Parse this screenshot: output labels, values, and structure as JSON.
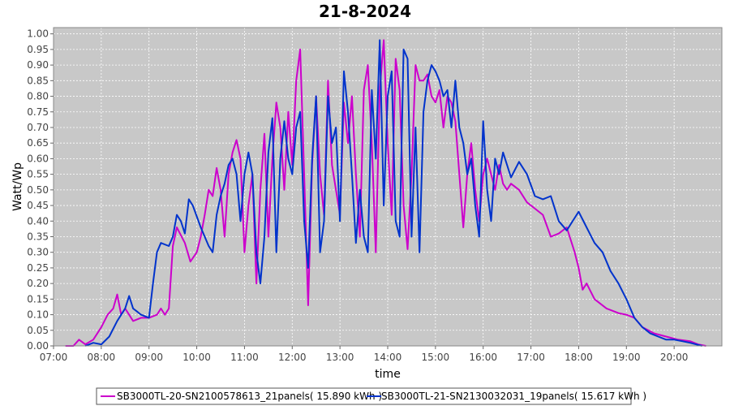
{
  "chart_data": {
    "type": "line",
    "title": "21-8-2024",
    "xlabel": "time",
    "ylabel": "Watt/Wp",
    "xlim": [
      "07:00",
      "21:00"
    ],
    "ylim": [
      0,
      1.02
    ],
    "x_ticks": [
      "07:00",
      "08:00",
      "09:00",
      "10:00",
      "11:00",
      "12:00",
      "13:00",
      "14:00",
      "15:00",
      "16:00",
      "17:00",
      "18:00",
      "19:00",
      "20:00"
    ],
    "y_ticks": [
      "0.00",
      "0.05",
      "0.10",
      "0.15",
      "0.20",
      "0.25",
      "0.30",
      "0.35",
      "0.40",
      "0.45",
      "0.50",
      "0.55",
      "0.60",
      "0.65",
      "0.70",
      "0.75",
      "0.80",
      "0.85",
      "0.90",
      "0.95",
      "1.00"
    ],
    "grid": true,
    "legend_position": "bottom",
    "plot_background": "#c8c8c8",
    "series": [
      {
        "name": "SB3000TL-20-SN2100578613_21panels( 15.890 kWh )",
        "color": "#cc00cc",
        "points": [
          [
            "07:15",
            0.0
          ],
          [
            "07:25",
            0.0
          ],
          [
            "07:32",
            0.02
          ],
          [
            "07:40",
            0.005
          ],
          [
            "07:50",
            0.02
          ],
          [
            "08:00",
            0.06
          ],
          [
            "08:08",
            0.1
          ],
          [
            "08:15",
            0.12
          ],
          [
            "08:20",
            0.165
          ],
          [
            "08:25",
            0.1
          ],
          [
            "08:30",
            0.12
          ],
          [
            "08:40",
            0.08
          ],
          [
            "08:50",
            0.09
          ],
          [
            "09:00",
            0.09
          ],
          [
            "09:10",
            0.1
          ],
          [
            "09:15",
            0.12
          ],
          [
            "09:20",
            0.1
          ],
          [
            "09:25",
            0.12
          ],
          [
            "09:30",
            0.32
          ],
          [
            "09:35",
            0.38
          ],
          [
            "09:45",
            0.33
          ],
          [
            "09:52",
            0.27
          ],
          [
            "10:00",
            0.3
          ],
          [
            "10:05",
            0.35
          ],
          [
            "10:10",
            0.42
          ],
          [
            "10:15",
            0.5
          ],
          [
            "10:20",
            0.48
          ],
          [
            "10:25",
            0.57
          ],
          [
            "10:30",
            0.5
          ],
          [
            "10:35",
            0.35
          ],
          [
            "10:40",
            0.55
          ],
          [
            "10:45",
            0.62
          ],
          [
            "10:50",
            0.66
          ],
          [
            "10:55",
            0.6
          ],
          [
            "11:00",
            0.3
          ],
          [
            "11:05",
            0.45
          ],
          [
            "11:10",
            0.55
          ],
          [
            "11:15",
            0.2
          ],
          [
            "11:20",
            0.5
          ],
          [
            "11:25",
            0.68
          ],
          [
            "11:30",
            0.35
          ],
          [
            "11:35",
            0.6
          ],
          [
            "11:40",
            0.78
          ],
          [
            "11:45",
            0.7
          ],
          [
            "11:50",
            0.5
          ],
          [
            "11:55",
            0.75
          ],
          [
            "12:00",
            0.58
          ],
          [
            "12:05",
            0.85
          ],
          [
            "12:10",
            0.95
          ],
          [
            "12:15",
            0.55
          ],
          [
            "12:20",
            0.13
          ],
          [
            "12:25",
            0.58
          ],
          [
            "12:30",
            0.8
          ],
          [
            "12:35",
            0.55
          ],
          [
            "12:40",
            0.42
          ],
          [
            "12:45",
            0.85
          ],
          [
            "12:50",
            0.58
          ],
          [
            "12:55",
            0.5
          ],
          [
            "13:00",
            0.42
          ],
          [
            "13:05",
            0.78
          ],
          [
            "13:10",
            0.65
          ],
          [
            "13:15",
            0.8
          ],
          [
            "13:20",
            0.55
          ],
          [
            "13:25",
            0.35
          ],
          [
            "13:30",
            0.82
          ],
          [
            "13:35",
            0.9
          ],
          [
            "13:40",
            0.65
          ],
          [
            "13:45",
            0.3
          ],
          [
            "13:50",
            0.82
          ],
          [
            "13:55",
            0.98
          ],
          [
            "14:00",
            0.65
          ],
          [
            "14:05",
            0.42
          ],
          [
            "14:10",
            0.92
          ],
          [
            "14:15",
            0.82
          ],
          [
            "14:20",
            0.45
          ],
          [
            "14:25",
            0.31
          ],
          [
            "14:30",
            0.55
          ],
          [
            "14:35",
            0.9
          ],
          [
            "14:40",
            0.85
          ],
          [
            "14:45",
            0.85
          ],
          [
            "14:50",
            0.87
          ],
          [
            "14:55",
            0.8
          ],
          [
            "15:00",
            0.78
          ],
          [
            "15:05",
            0.82
          ],
          [
            "15:10",
            0.7
          ],
          [
            "15:15",
            0.8
          ],
          [
            "15:20",
            0.78
          ],
          [
            "15:25",
            0.72
          ],
          [
            "15:30",
            0.55
          ],
          [
            "15:35",
            0.38
          ],
          [
            "15:40",
            0.55
          ],
          [
            "15:45",
            0.65
          ],
          [
            "15:50",
            0.5
          ],
          [
            "15:55",
            0.4
          ],
          [
            "16:00",
            0.55
          ],
          [
            "16:05",
            0.6
          ],
          [
            "16:10",
            0.55
          ],
          [
            "16:15",
            0.5
          ],
          [
            "16:20",
            0.58
          ],
          [
            "16:25",
            0.52
          ],
          [
            "16:30",
            0.5
          ],
          [
            "16:35",
            0.52
          ],
          [
            "16:45",
            0.5
          ],
          [
            "16:55",
            0.46
          ],
          [
            "17:05",
            0.44
          ],
          [
            "17:15",
            0.42
          ],
          [
            "17:25",
            0.35
          ],
          [
            "17:35",
            0.36
          ],
          [
            "17:45",
            0.38
          ],
          [
            "17:55",
            0.3
          ],
          [
            "18:00",
            0.25
          ],
          [
            "18:05",
            0.18
          ],
          [
            "18:10",
            0.2
          ],
          [
            "18:20",
            0.15
          ],
          [
            "18:35",
            0.12
          ],
          [
            "18:50",
            0.105
          ],
          [
            "19:00",
            0.1
          ],
          [
            "19:10",
            0.09
          ],
          [
            "19:20",
            0.06
          ],
          [
            "19:35",
            0.04
          ],
          [
            "19:50",
            0.03
          ],
          [
            "20:05",
            0.02
          ],
          [
            "20:20",
            0.015
          ],
          [
            "20:30",
            0.005
          ],
          [
            "20:40",
            0.0
          ]
        ]
      },
      {
        "name": "SB3000TL-21-SN2130032031_19panels( 15.617 kWh )",
        "color": "#0033cc",
        "points": [
          [
            "07:40",
            0.0
          ],
          [
            "07:50",
            0.01
          ],
          [
            "08:00",
            0.005
          ],
          [
            "08:10",
            0.03
          ],
          [
            "08:20",
            0.08
          ],
          [
            "08:30",
            0.12
          ],
          [
            "08:35",
            0.16
          ],
          [
            "08:40",
            0.12
          ],
          [
            "08:45",
            0.11
          ],
          [
            "08:50",
            0.1
          ],
          [
            "09:00",
            0.09
          ],
          [
            "09:05",
            0.2
          ],
          [
            "09:10",
            0.3
          ],
          [
            "09:15",
            0.33
          ],
          [
            "09:25",
            0.32
          ],
          [
            "09:30",
            0.35
          ],
          [
            "09:35",
            0.42
          ],
          [
            "09:40",
            0.4
          ],
          [
            "09:45",
            0.36
          ],
          [
            "09:50",
            0.47
          ],
          [
            "09:55",
            0.45
          ],
          [
            "10:05",
            0.38
          ],
          [
            "10:15",
            0.32
          ],
          [
            "10:20",
            0.3
          ],
          [
            "10:25",
            0.42
          ],
          [
            "10:30",
            0.48
          ],
          [
            "10:35",
            0.52
          ],
          [
            "10:40",
            0.58
          ],
          [
            "10:45",
            0.6
          ],
          [
            "10:50",
            0.55
          ],
          [
            "10:55",
            0.4
          ],
          [
            "11:00",
            0.55
          ],
          [
            "11:05",
            0.62
          ],
          [
            "11:10",
            0.55
          ],
          [
            "11:15",
            0.3
          ],
          [
            "11:20",
            0.2
          ],
          [
            "11:25",
            0.35
          ],
          [
            "11:30",
            0.62
          ],
          [
            "11:35",
            0.73
          ],
          [
            "11:40",
            0.3
          ],
          [
            "11:45",
            0.6
          ],
          [
            "11:50",
            0.72
          ],
          [
            "11:55",
            0.6
          ],
          [
            "12:00",
            0.55
          ],
          [
            "12:05",
            0.7
          ],
          [
            "12:10",
            0.75
          ],
          [
            "12:15",
            0.4
          ],
          [
            "12:20",
            0.25
          ],
          [
            "12:25",
            0.6
          ],
          [
            "12:30",
            0.8
          ],
          [
            "12:35",
            0.3
          ],
          [
            "12:40",
            0.4
          ],
          [
            "12:45",
            0.8
          ],
          [
            "12:50",
            0.65
          ],
          [
            "12:55",
            0.7
          ],
          [
            "13:00",
            0.4
          ],
          [
            "13:05",
            0.88
          ],
          [
            "13:10",
            0.75
          ],
          [
            "13:15",
            0.55
          ],
          [
            "13:20",
            0.33
          ],
          [
            "13:25",
            0.5
          ],
          [
            "13:30",
            0.35
          ],
          [
            "13:35",
            0.3
          ],
          [
            "13:40",
            0.82
          ],
          [
            "13:45",
            0.6
          ],
          [
            "13:50",
            0.98
          ],
          [
            "13:55",
            0.45
          ],
          [
            "14:00",
            0.8
          ],
          [
            "14:05",
            0.88
          ],
          [
            "14:10",
            0.4
          ],
          [
            "14:15",
            0.35
          ],
          [
            "14:20",
            0.95
          ],
          [
            "14:25",
            0.92
          ],
          [
            "14:30",
            0.35
          ],
          [
            "14:35",
            0.7
          ],
          [
            "14:40",
            0.3
          ],
          [
            "14:45",
            0.75
          ],
          [
            "14:50",
            0.85
          ],
          [
            "14:55",
            0.9
          ],
          [
            "15:00",
            0.88
          ],
          [
            "15:05",
            0.85
          ],
          [
            "15:10",
            0.8
          ],
          [
            "15:15",
            0.82
          ],
          [
            "15:20",
            0.7
          ],
          [
            "15:25",
            0.85
          ],
          [
            "15:30",
            0.7
          ],
          [
            "15:35",
            0.65
          ],
          [
            "15:40",
            0.55
          ],
          [
            "15:45",
            0.6
          ],
          [
            "15:50",
            0.45
          ],
          [
            "15:55",
            0.35
          ],
          [
            "16:00",
            0.72
          ],
          [
            "16:05",
            0.5
          ],
          [
            "16:10",
            0.4
          ],
          [
            "16:15",
            0.6
          ],
          [
            "16:20",
            0.55
          ],
          [
            "16:25",
            0.62
          ],
          [
            "16:30",
            0.58
          ],
          [
            "16:35",
            0.54
          ],
          [
            "16:45",
            0.59
          ],
          [
            "16:55",
            0.55
          ],
          [
            "17:05",
            0.48
          ],
          [
            "17:15",
            0.47
          ],
          [
            "17:25",
            0.48
          ],
          [
            "17:35",
            0.4
          ],
          [
            "17:45",
            0.37
          ],
          [
            "17:55",
            0.41
          ],
          [
            "18:00",
            0.43
          ],
          [
            "18:10",
            0.38
          ],
          [
            "18:20",
            0.33
          ],
          [
            "18:30",
            0.3
          ],
          [
            "18:40",
            0.24
          ],
          [
            "18:50",
            0.2
          ],
          [
            "19:00",
            0.15
          ],
          [
            "19:10",
            0.09
          ],
          [
            "19:20",
            0.06
          ],
          [
            "19:30",
            0.04
          ],
          [
            "19:40",
            0.03
          ],
          [
            "19:50",
            0.02
          ],
          [
            "20:00",
            0.02
          ],
          [
            "20:10",
            0.015
          ],
          [
            "20:20",
            0.01
          ],
          [
            "20:35",
            0.0
          ]
        ]
      }
    ]
  }
}
